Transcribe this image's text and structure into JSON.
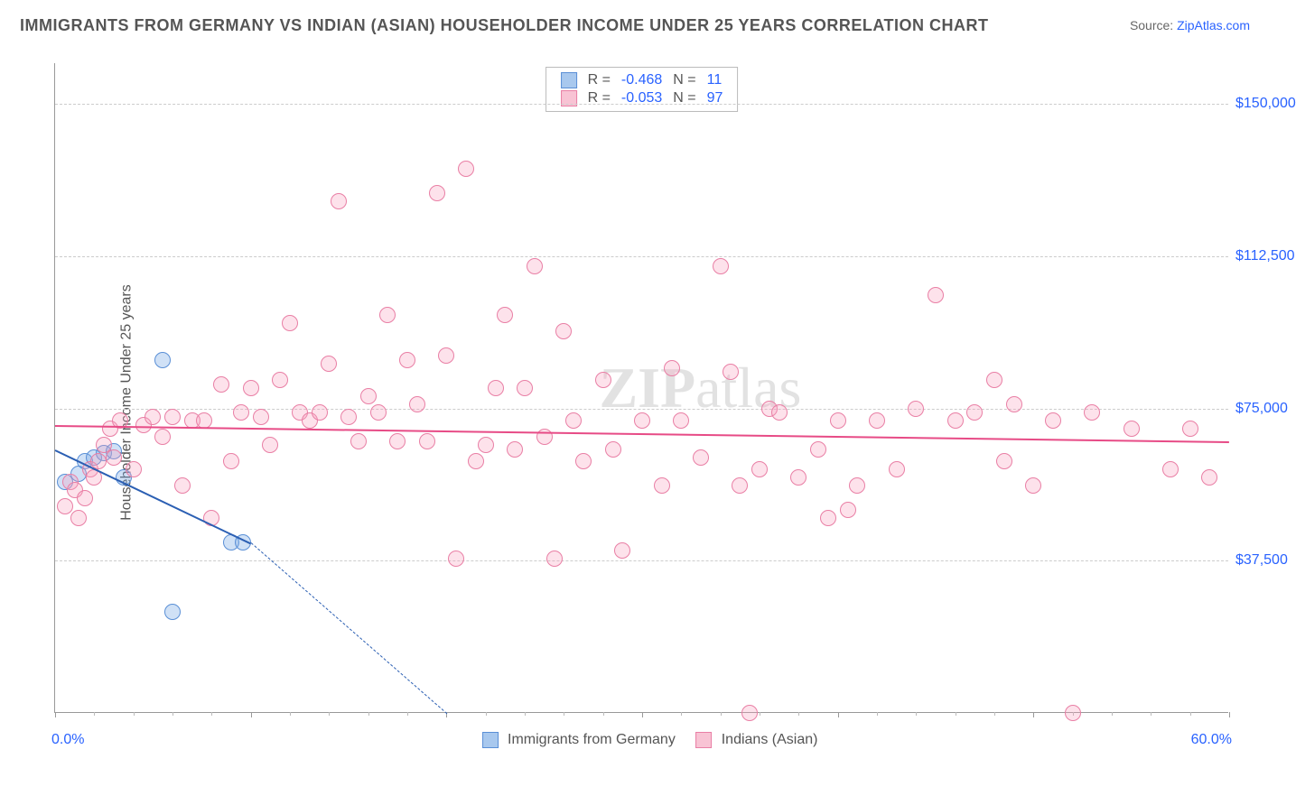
{
  "title": "IMMIGRANTS FROM GERMANY VS INDIAN (ASIAN) HOUSEHOLDER INCOME UNDER 25 YEARS CORRELATION CHART",
  "source_label": "Source: ",
  "source_name": "ZipAtlas.com",
  "watermark_a": "ZIP",
  "watermark_b": "atlas",
  "ylabel": "Householder Income Under 25 years",
  "chart": {
    "type": "scatter",
    "xlim": [
      0,
      60
    ],
    "ylim": [
      0,
      160000
    ],
    "xlim_labels": [
      "0.0%",
      "60.0%"
    ],
    "ytick_values": [
      37500,
      75000,
      112500,
      150000
    ],
    "ytick_labels": [
      "$37,500",
      "$75,000",
      "$112,500",
      "$150,000"
    ],
    "xtick_majors": [
      0,
      10,
      20,
      30,
      40,
      50,
      60
    ],
    "xtick_minors": [
      2,
      4,
      6,
      8,
      12,
      14,
      16,
      18,
      22,
      24,
      26,
      28,
      32,
      34,
      36,
      38,
      42,
      44,
      46,
      48,
      52,
      54,
      56,
      58
    ],
    "background_color": "#ffffff",
    "grid_color": "#cccccc",
    "axis_color": "#999999",
    "tick_label_color": "#2962ff",
    "marker_radius": 9,
    "marker_border_width": 1.5,
    "series": [
      {
        "id": "germany",
        "name": "Immigrants from Germany",
        "color_fill": "rgba(120,170,230,0.35)",
        "color_stroke": "#5a8fd6",
        "legend_box_fill": "#a8c8ee",
        "legend_box_stroke": "#5a8fd6",
        "R": "-0.468",
        "N": "11",
        "trend": {
          "x1": 0,
          "y1": 65000,
          "x2": 10,
          "y2": 42000,
          "dash_to_x": 20,
          "dash_to_y": 0,
          "color": "#2b5fb3",
          "width": 2
        },
        "points": [
          {
            "x": 0.5,
            "y": 57000
          },
          {
            "x": 1.2,
            "y": 59000
          },
          {
            "x": 1.5,
            "y": 62000
          },
          {
            "x": 2.0,
            "y": 63000
          },
          {
            "x": 2.5,
            "y": 64000
          },
          {
            "x": 3.0,
            "y": 64500
          },
          {
            "x": 3.5,
            "y": 58000
          },
          {
            "x": 5.5,
            "y": 87000
          },
          {
            "x": 6.0,
            "y": 25000
          },
          {
            "x": 9.0,
            "y": 42000
          },
          {
            "x": 9.6,
            "y": 42000
          }
        ]
      },
      {
        "id": "indian",
        "name": "Indians (Asian)",
        "color_fill": "rgba(248,160,190,0.30)",
        "color_stroke": "#e97fa5",
        "legend_box_fill": "#f8c3d4",
        "legend_box_stroke": "#e97fa5",
        "R": "-0.053",
        "N": "97",
        "trend": {
          "x1": 0,
          "y1": 71000,
          "x2": 60,
          "y2": 67000,
          "color": "#e74b86",
          "width": 2.5
        },
        "points": [
          {
            "x": 0.5,
            "y": 51000
          },
          {
            "x": 0.8,
            "y": 57000
          },
          {
            "x": 1.0,
            "y": 55000
          },
          {
            "x": 1.2,
            "y": 48000
          },
          {
            "x": 1.5,
            "y": 53000
          },
          {
            "x": 1.8,
            "y": 60000
          },
          {
            "x": 2.0,
            "y": 58000
          },
          {
            "x": 2.2,
            "y": 62000
          },
          {
            "x": 2.5,
            "y": 66000
          },
          {
            "x": 2.8,
            "y": 70000
          },
          {
            "x": 3.0,
            "y": 63000
          },
          {
            "x": 3.3,
            "y": 72000
          },
          {
            "x": 4.0,
            "y": 60000
          },
          {
            "x": 4.5,
            "y": 71000
          },
          {
            "x": 5.0,
            "y": 73000
          },
          {
            "x": 5.5,
            "y": 68000
          },
          {
            "x": 6.0,
            "y": 73000
          },
          {
            "x": 6.5,
            "y": 56000
          },
          {
            "x": 7.0,
            "y": 72000
          },
          {
            "x": 7.6,
            "y": 72000
          },
          {
            "x": 8.0,
            "y": 48000
          },
          {
            "x": 8.5,
            "y": 81000
          },
          {
            "x": 9.0,
            "y": 62000
          },
          {
            "x": 9.5,
            "y": 74000
          },
          {
            "x": 10.0,
            "y": 80000
          },
          {
            "x": 10.5,
            "y": 73000
          },
          {
            "x": 11.0,
            "y": 66000
          },
          {
            "x": 11.5,
            "y": 82000
          },
          {
            "x": 12.0,
            "y": 96000
          },
          {
            "x": 12.5,
            "y": 74000
          },
          {
            "x": 13.0,
            "y": 72000
          },
          {
            "x": 13.5,
            "y": 74000
          },
          {
            "x": 14.0,
            "y": 86000
          },
          {
            "x": 14.5,
            "y": 126000
          },
          {
            "x": 15.0,
            "y": 73000
          },
          {
            "x": 15.5,
            "y": 67000
          },
          {
            "x": 16.0,
            "y": 78000
          },
          {
            "x": 16.5,
            "y": 74000
          },
          {
            "x": 17.0,
            "y": 98000
          },
          {
            "x": 17.5,
            "y": 67000
          },
          {
            "x": 18.0,
            "y": 87000
          },
          {
            "x": 18.5,
            "y": 76000
          },
          {
            "x": 19.0,
            "y": 67000
          },
          {
            "x": 19.5,
            "y": 128000
          },
          {
            "x": 20.0,
            "y": 88000
          },
          {
            "x": 20.5,
            "y": 38000
          },
          {
            "x": 21.0,
            "y": 134000
          },
          {
            "x": 21.5,
            "y": 62000
          },
          {
            "x": 22.0,
            "y": 66000
          },
          {
            "x": 22.5,
            "y": 80000
          },
          {
            "x": 23.0,
            "y": 98000
          },
          {
            "x": 23.5,
            "y": 65000
          },
          {
            "x": 24.0,
            "y": 80000
          },
          {
            "x": 24.5,
            "y": 110000
          },
          {
            "x": 25.0,
            "y": 68000
          },
          {
            "x": 25.5,
            "y": 38000
          },
          {
            "x": 26.0,
            "y": 94000
          },
          {
            "x": 26.5,
            "y": 72000
          },
          {
            "x": 27.0,
            "y": 62000
          },
          {
            "x": 28.0,
            "y": 82000
          },
          {
            "x": 28.5,
            "y": 65000
          },
          {
            "x": 29.0,
            "y": 40000
          },
          {
            "x": 30.0,
            "y": 72000
          },
          {
            "x": 31.0,
            "y": 56000
          },
          {
            "x": 31.5,
            "y": 85000
          },
          {
            "x": 32.0,
            "y": 72000
          },
          {
            "x": 33.0,
            "y": 63000
          },
          {
            "x": 34.0,
            "y": 110000
          },
          {
            "x": 34.5,
            "y": 84000
          },
          {
            "x": 35.0,
            "y": 56000
          },
          {
            "x": 35.5,
            "y": 0
          },
          {
            "x": 36.0,
            "y": 60000
          },
          {
            "x": 36.5,
            "y": 75000
          },
          {
            "x": 37.0,
            "y": 74000
          },
          {
            "x": 38.0,
            "y": 58000
          },
          {
            "x": 39.0,
            "y": 65000
          },
          {
            "x": 39.5,
            "y": 48000
          },
          {
            "x": 40.0,
            "y": 72000
          },
          {
            "x": 40.5,
            "y": 50000
          },
          {
            "x": 41.0,
            "y": 56000
          },
          {
            "x": 42.0,
            "y": 72000
          },
          {
            "x": 43.0,
            "y": 60000
          },
          {
            "x": 44.0,
            "y": 75000
          },
          {
            "x": 45.0,
            "y": 103000
          },
          {
            "x": 46.0,
            "y": 72000
          },
          {
            "x": 47.0,
            "y": 74000
          },
          {
            "x": 48.0,
            "y": 82000
          },
          {
            "x": 48.5,
            "y": 62000
          },
          {
            "x": 49.0,
            "y": 76000
          },
          {
            "x": 50.0,
            "y": 56000
          },
          {
            "x": 51.0,
            "y": 72000
          },
          {
            "x": 52.0,
            "y": 0
          },
          {
            "x": 53.0,
            "y": 74000
          },
          {
            "x": 55.0,
            "y": 70000
          },
          {
            "x": 57.0,
            "y": 60000
          },
          {
            "x": 58.0,
            "y": 70000
          },
          {
            "x": 59.0,
            "y": 58000
          }
        ]
      }
    ]
  },
  "legend_top": {
    "r_label": "R =",
    "n_label": "N ="
  },
  "legend_bottom_items": [
    {
      "series": 0
    },
    {
      "series": 1
    }
  ]
}
